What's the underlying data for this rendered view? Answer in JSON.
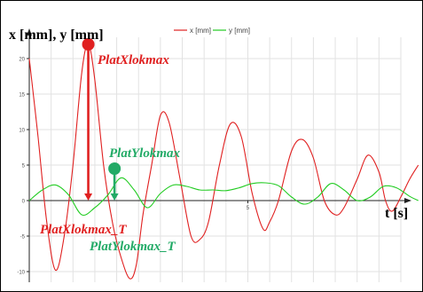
{
  "chart_data": {
    "type": "line",
    "title": "",
    "xlabel": "t [s]",
    "ylabel": "x [mm], y [mm]",
    "xlim": [
      0,
      8.5
    ],
    "ylim": [
      -11.5,
      23
    ],
    "yticks": [
      -10,
      -5,
      0,
      5,
      10,
      15,
      20
    ],
    "xticks": [
      5
    ],
    "grid": true,
    "legend": "top",
    "series": [
      {
        "name": "x [mm]",
        "color": "#e02020",
        "points": [
          [
            0.0,
            20
          ],
          [
            0.2,
            9
          ],
          [
            0.4,
            -3
          ],
          [
            0.6,
            -9.8
          ],
          [
            0.8,
            -5
          ],
          [
            1.0,
            5
          ],
          [
            1.2,
            18
          ],
          [
            1.35,
            22
          ],
          [
            1.5,
            17
          ],
          [
            1.7,
            5
          ],
          [
            1.9,
            -3
          ],
          [
            2.1,
            -8
          ],
          [
            2.3,
            -11
          ],
          [
            2.45,
            -9
          ],
          [
            2.6,
            -2
          ],
          [
            2.8,
            5
          ],
          [
            3.0,
            12
          ],
          [
            3.2,
            11
          ],
          [
            3.45,
            3
          ],
          [
            3.7,
            -5
          ],
          [
            3.9,
            -5.5
          ],
          [
            4.1,
            -3
          ],
          [
            4.35,
            5
          ],
          [
            4.6,
            10.8
          ],
          [
            4.85,
            9
          ],
          [
            5.1,
            1
          ],
          [
            5.35,
            -4
          ],
          [
            5.5,
            -3
          ],
          [
            5.7,
            0
          ],
          [
            6.0,
            7
          ],
          [
            6.25,
            8.6
          ],
          [
            6.5,
            6
          ],
          [
            6.75,
            0
          ],
          [
            7.0,
            -2
          ],
          [
            7.2,
            -1
          ],
          [
            7.5,
            3
          ],
          [
            7.75,
            6.4
          ],
          [
            8.0,
            4
          ],
          [
            8.15,
            0
          ],
          [
            8.3,
            -1.5
          ],
          [
            8.5,
            0.5
          ],
          [
            8.7,
            3
          ],
          [
            8.9,
            5
          ]
        ]
      },
      {
        "name": "y [mm]",
        "color": "#22cc22",
        "points": [
          [
            0.0,
            0
          ],
          [
            0.3,
            1.5
          ],
          [
            0.6,
            2.2
          ],
          [
            0.9,
            0.8
          ],
          [
            1.2,
            -2
          ],
          [
            1.5,
            -1
          ],
          [
            1.8,
            0.8
          ],
          [
            2.1,
            3.2
          ],
          [
            2.4,
            1.5
          ],
          [
            2.7,
            -1
          ],
          [
            3.0,
            1
          ],
          [
            3.3,
            2.2
          ],
          [
            3.6,
            2
          ],
          [
            3.9,
            1.5
          ],
          [
            4.2,
            1.5
          ],
          [
            4.5,
            1.4
          ],
          [
            4.8,
            1.8
          ],
          [
            5.1,
            2.4
          ],
          [
            5.4,
            2.5
          ],
          [
            5.7,
            2.1
          ],
          [
            6.0,
            0.5
          ],
          [
            6.3,
            -0.5
          ],
          [
            6.6,
            0.5
          ],
          [
            6.9,
            2.4
          ],
          [
            7.2,
            1.5
          ],
          [
            7.5,
            0
          ],
          [
            7.8,
            0.5
          ],
          [
            8.1,
            2
          ],
          [
            8.4,
            1.8
          ],
          [
            8.7,
            0.6
          ],
          [
            8.9,
            0
          ]
        ]
      }
    ],
    "annotations": [
      {
        "label": "PlatXlokmax",
        "color": "#e02020",
        "point": [
          1.35,
          22
        ],
        "arrow_to": [
          1.35,
          0
        ]
      },
      {
        "label": "PlatXlokmax_T",
        "color": "#e02020"
      },
      {
        "label": "PlatYlokmax",
        "color": "#22aa66",
        "point": [
          1.95,
          4.5
        ],
        "arrow_to": [
          1.95,
          0
        ]
      },
      {
        "label": "PlatYlokmax_T",
        "color": "#22aa66"
      }
    ]
  }
}
